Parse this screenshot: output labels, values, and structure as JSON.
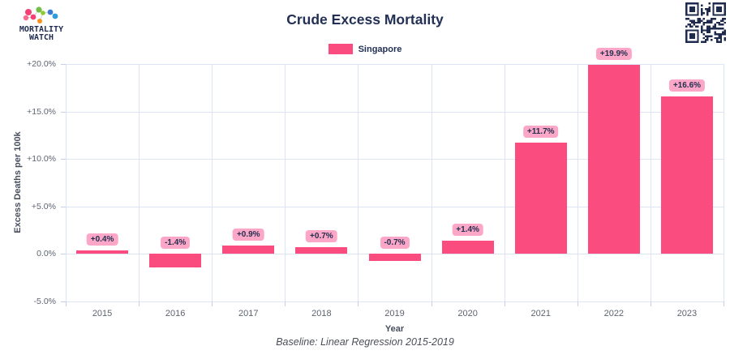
{
  "brand": {
    "line1": "MORTALITY",
    "line2": "WATCH"
  },
  "header": {
    "title": "Crude Excess Mortality"
  },
  "legend": {
    "label": "Singapore"
  },
  "footer": {
    "note": "Baseline: Linear Regression 2015-2019"
  },
  "icons": {
    "logo": "molecule-network-icon",
    "qr": "qr-code"
  },
  "colors": {
    "bar": "#fa4c7e",
    "bar_label_bg": "#fca6c8",
    "navy_text": "#233056",
    "gridline": "#dde4f6",
    "tick_text": "#5d6470",
    "logo_pink": "#f63f74",
    "logo_green": "#72bf44",
    "logo_orange": "#f7941d",
    "logo_blue": "#3a7bd5"
  },
  "chart_data": {
    "type": "bar",
    "title": "Crude Excess Mortality",
    "series_name": "Singapore",
    "categories": [
      "2015",
      "2016",
      "2017",
      "2018",
      "2019",
      "2020",
      "2021",
      "2022",
      "2023"
    ],
    "values": [
      0.4,
      -1.4,
      0.9,
      0.7,
      -0.7,
      1.4,
      11.7,
      19.9,
      16.6
    ],
    "value_labels": [
      "+0.4%",
      "-1.4%",
      "+0.9%",
      "+0.7%",
      "-0.7%",
      "+1.4%",
      "+11.7%",
      "+19.9%",
      "+16.6%"
    ],
    "xlabel": "Year",
    "ylabel": "Excess Deaths per 100k",
    "ylim": [
      -5,
      20
    ],
    "ytick_values": [
      20,
      15,
      10,
      5,
      0,
      -5
    ],
    "ytick_labels": [
      "+20.0%",
      "+15.0%",
      "+10.0%",
      "+5.0%",
      "0.0%",
      "-5.0%"
    ],
    "grid": true,
    "legend_position": "top"
  }
}
